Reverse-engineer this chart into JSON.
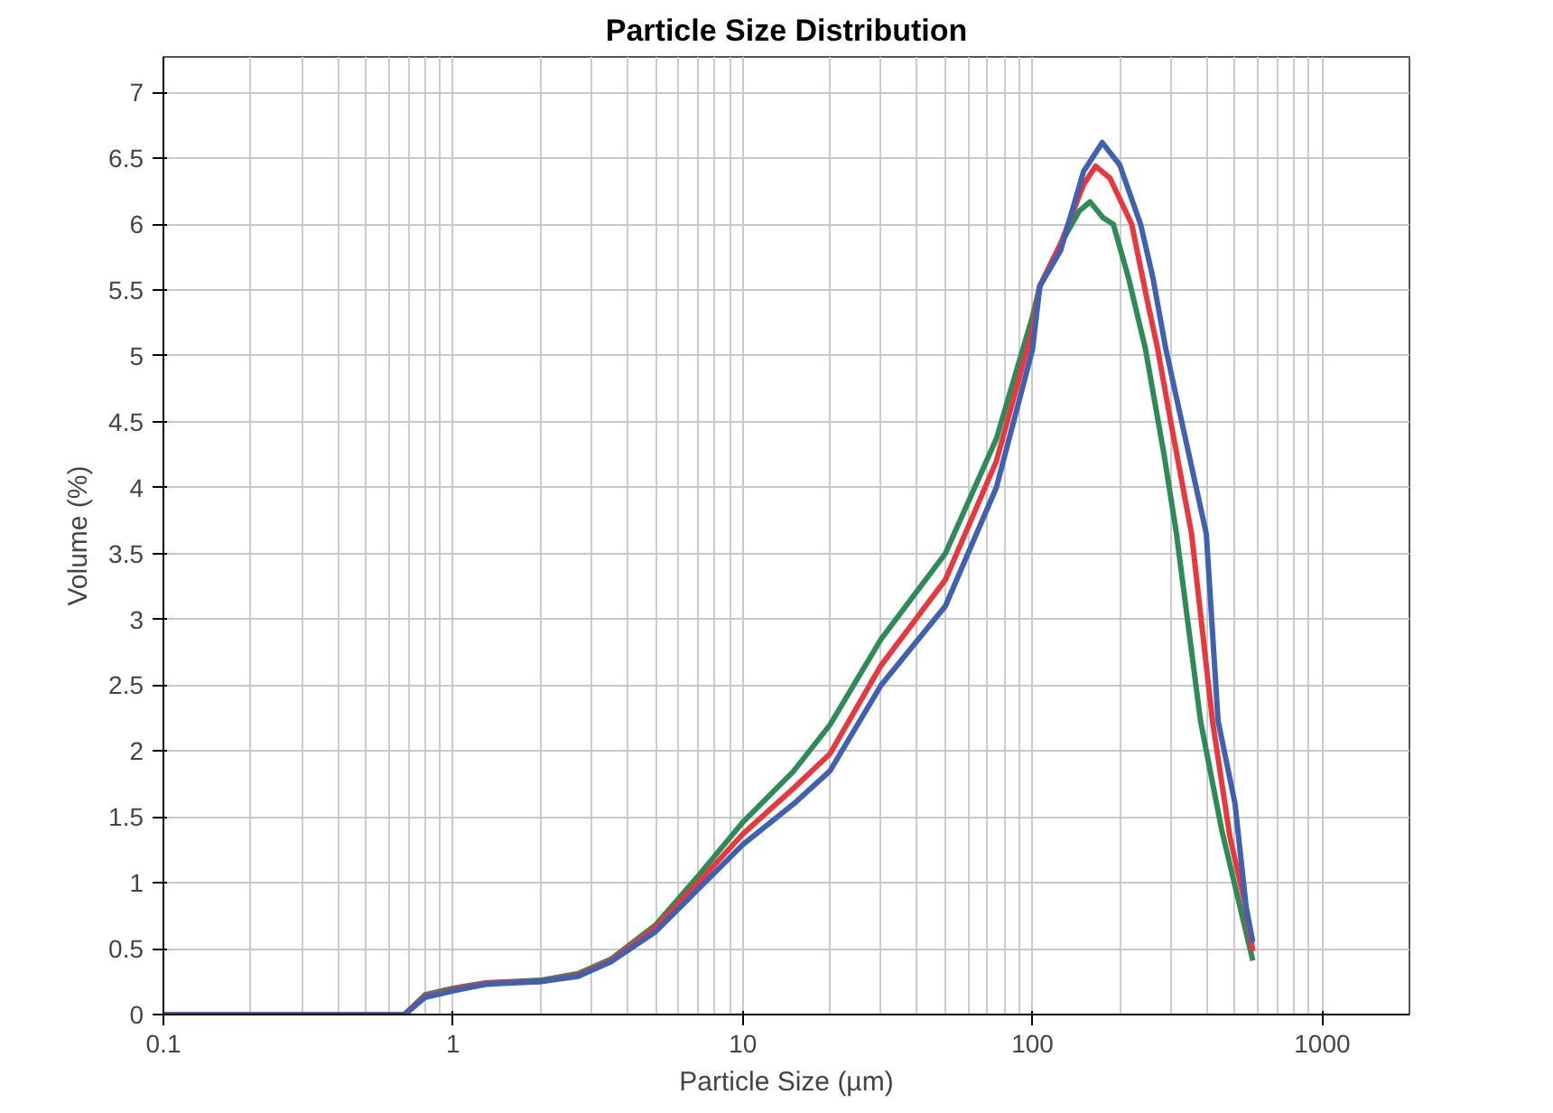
{
  "chart_data": {
    "type": "line",
    "title": "Particle Size Distribution",
    "xlabel": "Particle Size (µm)",
    "ylabel": "Volume (%)",
    "log": "x",
    "grid": true,
    "xlim": [
      0.1,
      2000
    ],
    "xticks": [
      0.1,
      1,
      10,
      100,
      1000
    ],
    "ylim": [
      0,
      7.27
    ],
    "yticks": [
      0,
      0.5,
      1,
      1.5,
      2,
      2.5,
      3,
      3.5,
      4,
      4.5,
      5,
      5.5,
      6,
      6.5,
      7
    ],
    "series": [
      {
        "color": "#2e8b57",
        "x": [
          0.1,
          0.68,
          0.8,
          1,
          1.3,
          2,
          2.7,
          3.5,
          5,
          7,
          10,
          15,
          20,
          30,
          50,
          75,
          100,
          106,
          125,
          145,
          158,
          175,
          190,
          214,
          245,
          284,
          314,
          380,
          450,
          520,
          576
        ],
        "values": [
          0,
          0,
          0.15,
          0.2,
          0.24,
          0.26,
          0.31,
          0.42,
          0.68,
          1.05,
          1.46,
          1.85,
          2.2,
          2.85,
          3.5,
          4.37,
          5.3,
          5.53,
          5.85,
          6.1,
          6.17,
          6.05,
          6.0,
          5.6,
          5.06,
          4.26,
          3.65,
          2.23,
          1.4,
          0.82,
          0.41
        ]
      },
      {
        "color": "#e8383d",
        "x": [
          0.1,
          0.68,
          0.8,
          1,
          1.3,
          2,
          2.7,
          3.5,
          5,
          7,
          10,
          15,
          20,
          30,
          50,
          75,
          100,
          106,
          125,
          150,
          165,
          185,
          220,
          250,
          270,
          300,
          354,
          418,
          480,
          540,
          576
        ],
        "values": [
          0,
          0,
          0.14,
          0.19,
          0.24,
          0.25,
          0.3,
          0.41,
          0.66,
          1.0,
          1.37,
          1.72,
          1.98,
          2.65,
          3.3,
          4.2,
          5.2,
          5.53,
          5.85,
          6.3,
          6.44,
          6.35,
          6.0,
          5.4,
          5.06,
          4.5,
          3.65,
          2.23,
          1.35,
          0.85,
          0.48
        ]
      },
      {
        "color": "#4060b0",
        "x": [
          0.1,
          0.68,
          0.8,
          1,
          1.3,
          2,
          2.7,
          3.5,
          5,
          7,
          10,
          15,
          20,
          30,
          50,
          75,
          100,
          106,
          125,
          150,
          174,
          200,
          236,
          260,
          288,
          320,
          398,
          437,
          500,
          546,
          576
        ],
        "values": [
          0,
          0,
          0.13,
          0.18,
          0.23,
          0.25,
          0.29,
          0.4,
          0.63,
          0.95,
          1.29,
          1.6,
          1.85,
          2.5,
          3.1,
          4.0,
          5.05,
          5.53,
          5.8,
          6.4,
          6.62,
          6.45,
          6.0,
          5.6,
          5.06,
          4.6,
          3.65,
          2.23,
          1.6,
          0.82,
          0.55
        ]
      }
    ]
  }
}
